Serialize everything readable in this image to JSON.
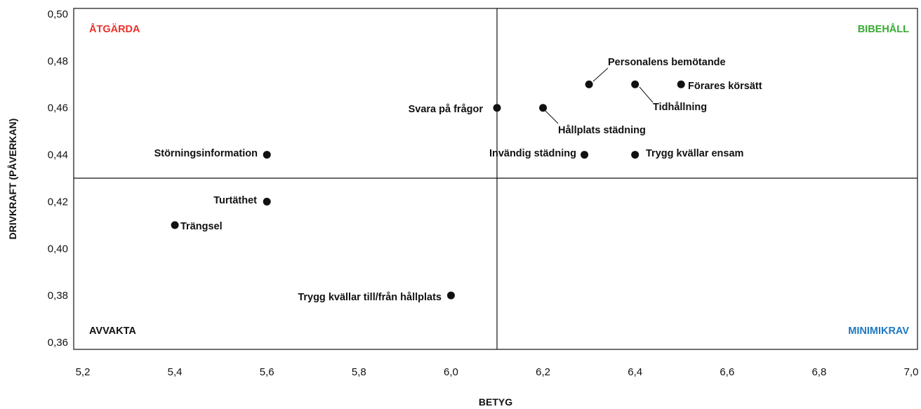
{
  "chart_data": {
    "type": "scatter",
    "xlabel": "BETYG",
    "ylabel": "DRIVKRAFT (PÅVERKAN)",
    "xlim": [
      5.2,
      7.0
    ],
    "ylim": [
      0.36,
      0.5
    ],
    "x_ticks": [
      "5,2",
      "5,4",
      "5,6",
      "5,8",
      "6,0",
      "6,2",
      "6,4",
      "6,6",
      "6,8",
      "7,0"
    ],
    "y_ticks": [
      "0,50",
      "0,48",
      "0,46",
      "0,44",
      "0,42",
      "0,40",
      "0,38",
      "0,36"
    ],
    "dividers": {
      "x": 6.1,
      "y": 0.43
    },
    "grid": false,
    "legend": "none",
    "quadrants": [
      {
        "key": "top-left",
        "label": "ÅTGÄRDA",
        "color": "#e8312a"
      },
      {
        "key": "top-right",
        "label": "BIBEHÅLL",
        "color": "#3aaa35"
      },
      {
        "key": "bottom-left",
        "label": "AVVAKTA",
        "color": "#111111"
      },
      {
        "key": "bottom-right",
        "label": "MINIMIKRAV",
        "color": "#1f78c1"
      }
    ],
    "points": [
      {
        "label": "Personalens bemötande",
        "x": 6.3,
        "y": 0.47
      },
      {
        "label": "Förares körsätt",
        "x": 6.5,
        "y": 0.47
      },
      {
        "label": "Tidhållning",
        "x": 6.4,
        "y": 0.47
      },
      {
        "label": "Svara på frågor",
        "x": 6.1,
        "y": 0.46
      },
      {
        "label": "Hållplats städning",
        "x": 6.2,
        "y": 0.46
      },
      {
        "label": "Störningsinformation",
        "x": 5.6,
        "y": 0.44
      },
      {
        "label": "Invändig städning",
        "x": 6.29,
        "y": 0.44
      },
      {
        "label": "Trygg kvällar ensam",
        "x": 6.4,
        "y": 0.44
      },
      {
        "label": "Turtäthet",
        "x": 5.6,
        "y": 0.42
      },
      {
        "label": "Trängsel",
        "x": 5.4,
        "y": 0.41
      },
      {
        "label": "Trygg kvällar till/från hållplats",
        "x": 6.0,
        "y": 0.38
      }
    ]
  }
}
